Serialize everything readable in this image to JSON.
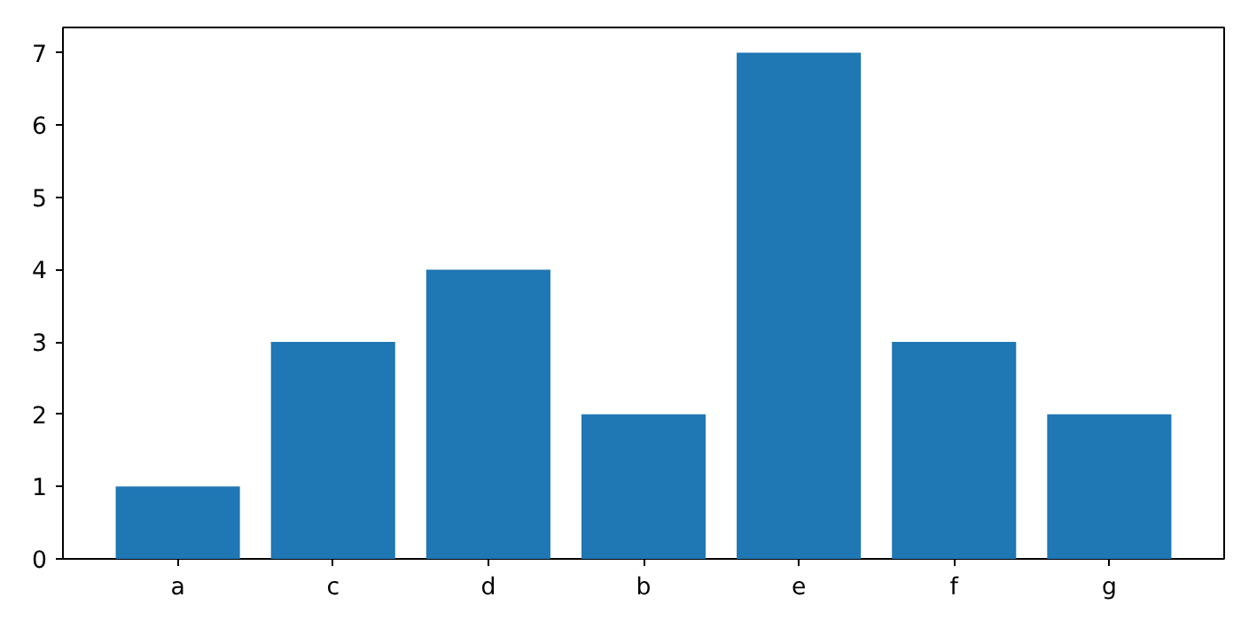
{
  "chart_data": {
    "type": "bar",
    "categories": [
      "a",
      "c",
      "d",
      "b",
      "e",
      "f",
      "g"
    ],
    "values": [
      1,
      3,
      4,
      2,
      7,
      3,
      2
    ],
    "color": "#1f77b4",
    "ylim": [
      0,
      7.35
    ],
    "yticks": [
      0,
      1,
      2,
      3,
      4,
      5,
      6,
      7
    ],
    "grid": false
  }
}
